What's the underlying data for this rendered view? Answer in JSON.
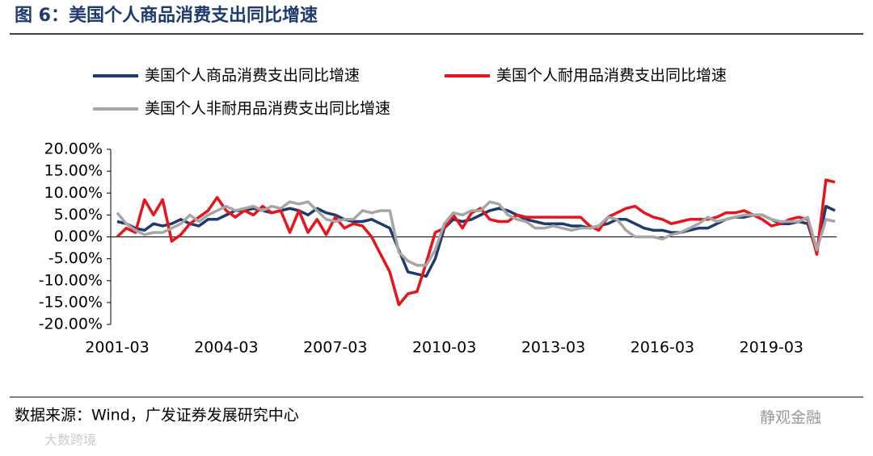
{
  "chart_data": {
    "type": "line",
    "title": "图 6：美国个人商品消费支出同比增速",
    "categories": [
      "2001-03",
      null,
      null,
      null,
      null,
      null,
      null,
      null,
      null,
      null,
      null,
      null,
      "2004-03",
      null,
      null,
      null,
      null,
      null,
      null,
      null,
      null,
      null,
      null,
      null,
      "2007-03",
      null,
      null,
      null,
      null,
      null,
      null,
      null,
      null,
      null,
      null,
      null,
      "2010-03",
      null,
      null,
      null,
      null,
      null,
      null,
      null,
      null,
      null,
      null,
      null,
      "2013-03",
      null,
      null,
      null,
      null,
      null,
      null,
      null,
      null,
      null,
      null,
      null,
      "2016-03",
      null,
      null,
      null,
      null,
      null,
      null,
      null,
      null,
      null,
      null,
      null,
      "2019-03",
      null,
      null,
      null,
      null,
      null,
      null,
      null
    ],
    "series": [
      {
        "name": "美国个人商品消费支出同比增速",
        "color": "#1f3a6e",
        "values": [
          3.5,
          3,
          2,
          1.5,
          3,
          2.5,
          3,
          4,
          3,
          2.5,
          4,
          4,
          5,
          6,
          6,
          6.5,
          6,
          5.5,
          6,
          6.5,
          6,
          5,
          6.5,
          5.5,
          5,
          4,
          3.5,
          3.5,
          4,
          3,
          2,
          -3,
          -8,
          -8.5,
          -9,
          -5,
          2,
          4,
          3.5,
          4,
          5,
          6,
          6.5,
          6,
          5,
          4,
          3.5,
          3,
          3,
          3,
          2.5,
          2.5,
          2,
          2.5,
          3,
          4,
          4,
          3,
          2,
          1.5,
          1.5,
          1,
          1,
          1.5,
          2,
          2,
          3,
          4,
          4.5,
          4.5,
          5,
          5,
          4,
          3,
          3,
          3.5,
          3,
          -3.5,
          7,
          6
        ]
      },
      {
        "name": "美国个人耐用品消费支出同比增速",
        "color": "#e8141b",
        "values": [
          0,
          2,
          1,
          8.5,
          5,
          8.5,
          -1,
          0.5,
          3,
          4.5,
          6,
          9,
          6,
          4.5,
          6,
          5,
          7,
          5.5,
          6,
          1,
          6,
          1,
          4,
          0.5,
          4.5,
          2,
          3,
          2.5,
          0,
          -4,
          -8,
          -15.5,
          -13,
          -12.5,
          -6,
          1,
          2,
          5,
          2,
          5.5,
          6.5,
          4,
          3.5,
          3.5,
          5,
          4.5,
          4.5,
          4.5,
          4.5,
          4.5,
          4.5,
          4.5,
          2.5,
          1.5,
          4.5,
          5.5,
          6.5,
          7,
          5.5,
          4.5,
          4,
          3,
          3.5,
          4,
          4,
          4,
          4.5,
          5.5,
          5.5,
          6,
          5,
          4,
          2.5,
          3,
          4,
          4.5,
          4,
          -4,
          13,
          12.5
        ]
      },
      {
        "name": "美国个人非耐用品消费支出同比增速",
        "color": "#a6a6a6",
        "values": [
          5.5,
          3,
          1.5,
          0.5,
          1,
          1,
          2,
          3,
          5,
          3.5,
          5,
          6,
          7,
          6,
          6.5,
          7,
          6,
          7,
          6.5,
          8,
          7.5,
          8,
          6,
          4,
          3.5,
          4,
          4,
          6,
          5.5,
          6,
          6,
          -3.5,
          -5.5,
          -6.5,
          -6.5,
          -3,
          3,
          5.5,
          5,
          6,
          6,
          8,
          7.5,
          5,
          4,
          3.5,
          2,
          2,
          2.5,
          2,
          1.5,
          2,
          2,
          2.5,
          4.5,
          4,
          1.5,
          0,
          0,
          0,
          -0.5,
          0.5,
          1,
          2,
          3,
          4.5,
          3.5,
          4,
          4.5,
          5,
          5,
          5,
          4,
          3.5,
          3.5,
          3.5,
          4.5,
          -3,
          4,
          3.5
        ]
      }
    ],
    "ylim": [
      -20,
      20
    ],
    "yticks": [
      {
        "value": -20,
        "label": "-20.00%"
      },
      {
        "value": -15,
        "label": "-15.00%"
      },
      {
        "value": -10,
        "label": "-10.00%"
      },
      {
        "value": -5,
        "label": "-5.00%"
      },
      {
        "value": 0,
        "label": "0.00%"
      },
      {
        "value": 5,
        "label": "5.00%"
      },
      {
        "value": 10,
        "label": "10.00%"
      },
      {
        "value": 15,
        "label": "15.00%"
      },
      {
        "value": 20,
        "label": "20.00%"
      }
    ],
    "grid": false
  },
  "footer": {
    "source": "数据来源：Wind，广发证券发展研究中心",
    "brand": "静观金融"
  },
  "watermark": "大数跨境"
}
